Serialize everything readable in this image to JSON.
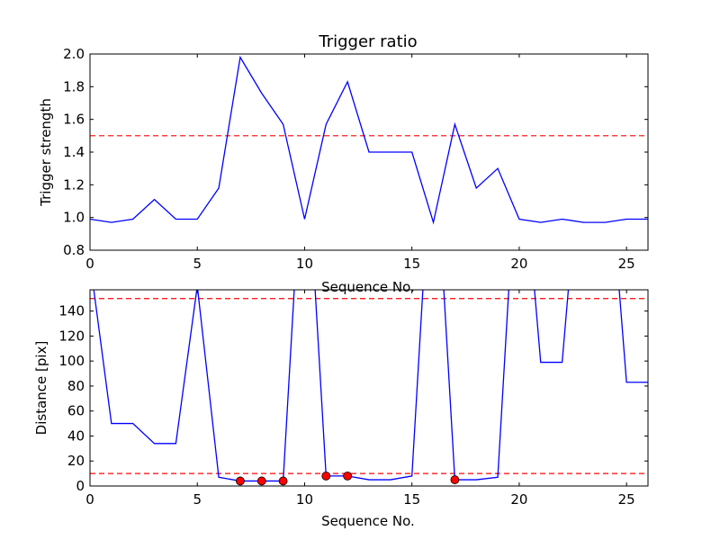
{
  "chart_data": [
    {
      "type": "line",
      "title": "Trigger ratio",
      "xlabel": "Sequence No.",
      "ylabel": "Trigger strength",
      "xlim": [
        0,
        26
      ],
      "ylim": [
        0.8,
        2.0
      ],
      "xticks": [
        "0",
        "5",
        "10",
        "15",
        "20",
        "25"
      ],
      "yticks": [
        "0.8",
        "1.0",
        "1.2",
        "1.4",
        "1.6",
        "1.8",
        "2.0"
      ],
      "threshold": 1.5,
      "line_color": "#0000ff",
      "threshold_color": "#ff0000",
      "x": [
        0,
        1,
        2,
        3,
        4,
        5,
        6,
        7,
        8,
        9,
        10,
        11,
        12,
        13,
        14,
        15,
        16,
        17,
        18,
        19,
        20,
        21,
        22,
        23,
        24,
        25,
        26
      ],
      "values": [
        0.99,
        0.97,
        0.99,
        1.11,
        0.99,
        0.99,
        1.18,
        1.98,
        1.76,
        1.57,
        0.99,
        1.57,
        1.83,
        1.4,
        1.4,
        1.4,
        0.97,
        1.57,
        1.18,
        1.3,
        0.99,
        0.97,
        0.99,
        0.97,
        0.97,
        0.99,
        0.99
      ]
    },
    {
      "type": "line",
      "title": "",
      "xlabel": "Sequence No.",
      "ylabel": "Distance [pix]",
      "xlim": [
        0,
        26
      ],
      "ylim": [
        0,
        157
      ],
      "xticks": [
        "0",
        "5",
        "10",
        "15",
        "20",
        "25"
      ],
      "yticks": [
        "0",
        "20",
        "40",
        "60",
        "80",
        "100",
        "120",
        "140"
      ],
      "thresholds": [
        150,
        10
      ],
      "line_color": "#0000ff",
      "threshold_color": "#ff0000",
      "marker_color": "#ff0000",
      "x": [
        0,
        1,
        2,
        3,
        4,
        5,
        6,
        7,
        8,
        9,
        10,
        11,
        12,
        13,
        14,
        15,
        16,
        17,
        18,
        19,
        20,
        21,
        22,
        23,
        24,
        25,
        26
      ],
      "values": [
        180,
        50,
        50,
        34,
        34,
        160,
        7,
        4,
        4,
        4,
        300,
        8,
        8,
        5,
        5,
        8,
        300,
        5,
        5,
        7,
        300,
        99,
        99,
        300,
        300,
        83,
        83
      ],
      "markers": [
        {
          "x": 7,
          "y": 4
        },
        {
          "x": 8,
          "y": 4
        },
        {
          "x": 9,
          "y": 4
        },
        {
          "x": 11,
          "y": 8
        },
        {
          "x": 12,
          "y": 8
        },
        {
          "x": 17,
          "y": 5
        }
      ]
    }
  ]
}
